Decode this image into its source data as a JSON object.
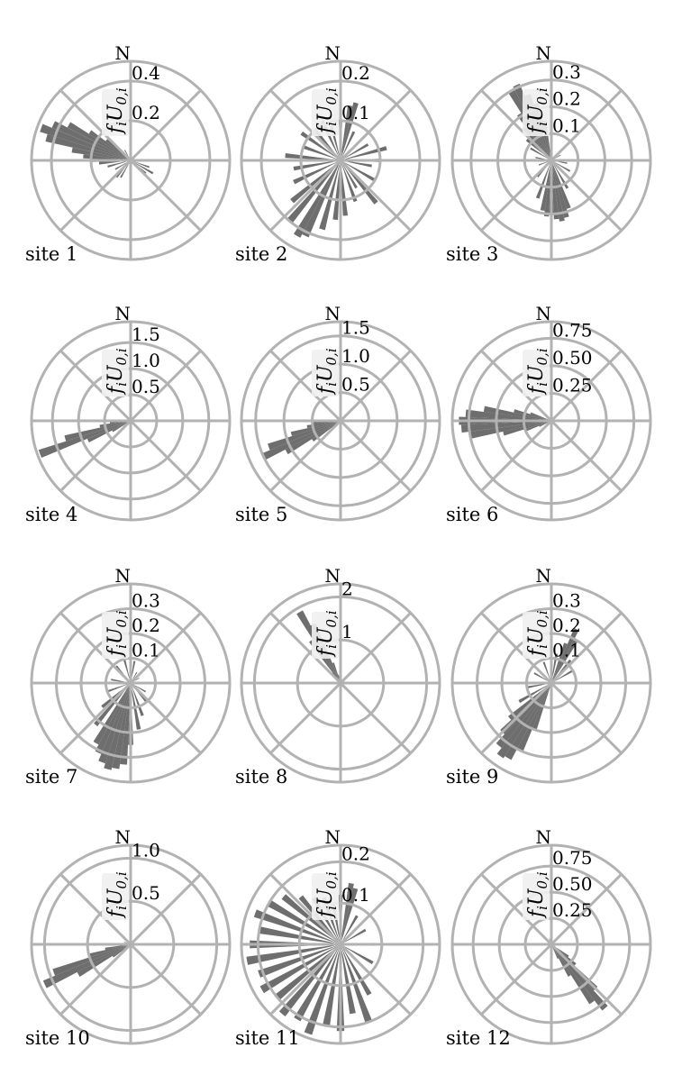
{
  "colors": {
    "bars": "#6e6e6e",
    "grid": "#b2b2b2",
    "label_box": "#f0f0f0"
  },
  "radial_label": {
    "f": "f",
    "i": "i",
    "U": "U",
    "sub": "0,",
    "i2": "i"
  },
  "chart_data": [
    {
      "type": "polar-bar",
      "site_label": "site 1",
      "north_label": "N",
      "rmax": 0.5,
      "ticks": [
        "0.2",
        "0.4"
      ],
      "tick_values": [
        0.2,
        0.4
      ],
      "grid": true,
      "bins": 72,
      "directions": [
        {
          "deg": 270,
          "r": 0.2
        },
        {
          "deg": 275,
          "r": 0.24
        },
        {
          "deg": 280,
          "r": 0.3
        },
        {
          "deg": 285,
          "r": 0.44
        },
        {
          "deg": 290,
          "r": 0.48
        },
        {
          "deg": 295,
          "r": 0.43
        },
        {
          "deg": 300,
          "r": 0.36
        },
        {
          "deg": 305,
          "r": 0.25
        },
        {
          "deg": 310,
          "r": 0.16
        },
        {
          "deg": 315,
          "r": 0.1
        },
        {
          "deg": 330,
          "r": 0.06
        },
        {
          "deg": 0,
          "r": 0.05
        },
        {
          "deg": 45,
          "r": 0.05
        },
        {
          "deg": 90,
          "r": 0.05
        },
        {
          "deg": 110,
          "r": 0.1
        },
        {
          "deg": 120,
          "r": 0.13
        },
        {
          "deg": 130,
          "r": 0.1
        },
        {
          "deg": 180,
          "r": 0.07
        },
        {
          "deg": 210,
          "r": 0.1
        },
        {
          "deg": 220,
          "r": 0.11
        },
        {
          "deg": 240,
          "r": 0.09
        },
        {
          "deg": 255,
          "r": 0.12
        },
        {
          "deg": 265,
          "r": 0.16
        }
      ]
    },
    {
      "type": "polar-bar",
      "site_label": "site 2",
      "north_label": "N",
      "rmax": 0.25,
      "ticks": [
        "0.1",
        "0.2"
      ],
      "tick_values": [
        0.1,
        0.2
      ],
      "grid": true,
      "bins": 72,
      "directions": [
        {
          "deg": 0,
          "r": 0.1
        },
        {
          "deg": 10,
          "r": 0.14
        },
        {
          "deg": 15,
          "r": 0.15
        },
        {
          "deg": 25,
          "r": 0.08
        },
        {
          "deg": 45,
          "r": 0.07
        },
        {
          "deg": 60,
          "r": 0.08
        },
        {
          "deg": 75,
          "r": 0.12
        },
        {
          "deg": 90,
          "r": 0.1
        },
        {
          "deg": 100,
          "r": 0.08
        },
        {
          "deg": 120,
          "r": 0.1
        },
        {
          "deg": 140,
          "r": 0.14
        },
        {
          "deg": 150,
          "r": 0.08
        },
        {
          "deg": 160,
          "r": 0.11
        },
        {
          "deg": 175,
          "r": 0.14
        },
        {
          "deg": 185,
          "r": 0.15
        },
        {
          "deg": 195,
          "r": 0.18
        },
        {
          "deg": 205,
          "r": 0.21
        },
        {
          "deg": 210,
          "r": 0.22
        },
        {
          "deg": 220,
          "r": 0.2
        },
        {
          "deg": 230,
          "r": 0.16
        },
        {
          "deg": 245,
          "r": 0.13
        },
        {
          "deg": 260,
          "r": 0.12
        },
        {
          "deg": 275,
          "r": 0.14
        },
        {
          "deg": 290,
          "r": 0.1
        },
        {
          "deg": 305,
          "r": 0.12
        },
        {
          "deg": 320,
          "r": 0.1
        },
        {
          "deg": 335,
          "r": 0.11
        },
        {
          "deg": 345,
          "r": 0.09
        }
      ]
    },
    {
      "type": "polar-bar",
      "site_label": "site 3",
      "north_label": "N",
      "rmax": 0.37,
      "ticks": [
        "0.1",
        "0.2",
        "0.3"
      ],
      "tick_values": [
        0.1,
        0.2,
        0.3
      ],
      "grid": true,
      "bins": 72,
      "directions": [
        {
          "deg": 0,
          "r": 0.03
        },
        {
          "deg": 60,
          "r": 0.04
        },
        {
          "deg": 100,
          "r": 0.06
        },
        {
          "deg": 120,
          "r": 0.08
        },
        {
          "deg": 150,
          "r": 0.12
        },
        {
          "deg": 160,
          "r": 0.19
        },
        {
          "deg": 165,
          "r": 0.22
        },
        {
          "deg": 170,
          "r": 0.23
        },
        {
          "deg": 175,
          "r": 0.22
        },
        {
          "deg": 180,
          "r": 0.2
        },
        {
          "deg": 185,
          "r": 0.21
        },
        {
          "deg": 190,
          "r": 0.19
        },
        {
          "deg": 200,
          "r": 0.15
        },
        {
          "deg": 220,
          "r": 0.08
        },
        {
          "deg": 250,
          "r": 0.05
        },
        {
          "deg": 280,
          "r": 0.06
        },
        {
          "deg": 300,
          "r": 0.09
        },
        {
          "deg": 310,
          "r": 0.12
        },
        {
          "deg": 320,
          "r": 0.16
        },
        {
          "deg": 325,
          "r": 0.21
        },
        {
          "deg": 330,
          "r": 0.3
        },
        {
          "deg": 335,
          "r": 0.31
        },
        {
          "deg": 340,
          "r": 0.26
        },
        {
          "deg": 345,
          "r": 0.22
        },
        {
          "deg": 350,
          "r": 0.15
        }
      ]
    },
    {
      "type": "polar-bar",
      "site_label": "site 4",
      "north_label": "N",
      "rmax": 1.9,
      "ticks": [
        "0.5",
        "1.0",
        "1.5"
      ],
      "tick_values": [
        0.5,
        1.0,
        1.5
      ],
      "grid": true,
      "bins": 72,
      "directions": [
        {
          "deg": 240,
          "r": 0.4
        },
        {
          "deg": 245,
          "r": 0.9
        },
        {
          "deg": 250,
          "r": 1.85
        },
        {
          "deg": 255,
          "r": 1.3
        },
        {
          "deg": 260,
          "r": 0.6
        },
        {
          "deg": 265,
          "r": 0.4
        },
        {
          "deg": 270,
          "r": 0.2
        },
        {
          "deg": 230,
          "r": 0.2
        },
        {
          "deg": 280,
          "r": 0.1
        }
      ]
    },
    {
      "type": "polar-bar",
      "site_label": "site 5",
      "north_label": "N",
      "rmax": 1.75,
      "ticks": [
        "0.5",
        "1.0",
        "1.5"
      ],
      "tick_values": [
        0.5,
        1.0,
        1.5
      ],
      "grid": true,
      "bins": 72,
      "directions": [
        {
          "deg": 235,
          "r": 0.6
        },
        {
          "deg": 240,
          "r": 1.1
        },
        {
          "deg": 245,
          "r": 1.5
        },
        {
          "deg": 250,
          "r": 1.35
        },
        {
          "deg": 255,
          "r": 0.9
        },
        {
          "deg": 260,
          "r": 0.6
        },
        {
          "deg": 265,
          "r": 0.5
        },
        {
          "deg": 270,
          "r": 0.3
        },
        {
          "deg": 225,
          "r": 0.2
        }
      ]
    },
    {
      "type": "polar-bar",
      "site_label": "site 6",
      "north_label": "N",
      "rmax": 0.9,
      "ticks": [
        "0.25",
        "0.50",
        "0.75"
      ],
      "tick_values": [
        0.25,
        0.5,
        0.75
      ],
      "grid": true,
      "bins": 72,
      "directions": [
        {
          "deg": 255,
          "r": 0.45
        },
        {
          "deg": 260,
          "r": 0.75
        },
        {
          "deg": 265,
          "r": 0.82
        },
        {
          "deg": 270,
          "r": 0.84
        },
        {
          "deg": 275,
          "r": 0.78
        },
        {
          "deg": 280,
          "r": 0.62
        },
        {
          "deg": 285,
          "r": 0.35
        },
        {
          "deg": 290,
          "r": 0.2
        },
        {
          "deg": 250,
          "r": 0.25
        },
        {
          "deg": 245,
          "r": 0.12
        },
        {
          "deg": 90,
          "r": 0.05
        }
      ]
    },
    {
      "type": "polar-bar",
      "site_label": "site 7",
      "north_label": "N",
      "rmax": 0.4,
      "ticks": [
        "0.1",
        "0.2",
        "0.3"
      ],
      "tick_values": [
        0.1,
        0.2,
        0.3
      ],
      "grid": true,
      "bins": 72,
      "directions": [
        {
          "deg": 0,
          "r": 0.14
        },
        {
          "deg": 10,
          "r": 0.09
        },
        {
          "deg": 30,
          "r": 0.05
        },
        {
          "deg": 60,
          "r": 0.04
        },
        {
          "deg": 90,
          "r": 0.05
        },
        {
          "deg": 120,
          "r": 0.07
        },
        {
          "deg": 140,
          "r": 0.1
        },
        {
          "deg": 160,
          "r": 0.14
        },
        {
          "deg": 170,
          "r": 0.19
        },
        {
          "deg": 180,
          "r": 0.25
        },
        {
          "deg": 185,
          "r": 0.33
        },
        {
          "deg": 190,
          "r": 0.35
        },
        {
          "deg": 195,
          "r": 0.36
        },
        {
          "deg": 200,
          "r": 0.34
        },
        {
          "deg": 205,
          "r": 0.31
        },
        {
          "deg": 210,
          "r": 0.28
        },
        {
          "deg": 220,
          "r": 0.22
        },
        {
          "deg": 230,
          "r": 0.15
        },
        {
          "deg": 250,
          "r": 0.1
        },
        {
          "deg": 280,
          "r": 0.08
        },
        {
          "deg": 320,
          "r": 0.09
        },
        {
          "deg": 345,
          "r": 0.13
        }
      ]
    },
    {
      "type": "polar-bar",
      "site_label": "site 8",
      "north_label": "N",
      "rmax": 2.3,
      "ticks": [
        "1",
        "2"
      ],
      "tick_values": [
        1,
        2
      ],
      "grid": true,
      "bins": 72,
      "directions": [
        {
          "deg": 325,
          "r": 1.2
        },
        {
          "deg": 330,
          "r": 1.9
        },
        {
          "deg": 335,
          "r": 1.5
        },
        {
          "deg": 340,
          "r": 0.5
        },
        {
          "deg": 320,
          "r": 0.3
        },
        {
          "deg": 345,
          "r": 0.2
        }
      ]
    },
    {
      "type": "polar-bar",
      "site_label": "site 9",
      "north_label": "N",
      "rmax": 0.4,
      "ticks": [
        "0.1",
        "0.2",
        "0.3"
      ],
      "tick_values": [
        0.1,
        0.2,
        0.3
      ],
      "grid": true,
      "bins": 72,
      "directions": [
        {
          "deg": 10,
          "r": 0.12
        },
        {
          "deg": 20,
          "r": 0.17
        },
        {
          "deg": 25,
          "r": 0.24
        },
        {
          "deg": 30,
          "r": 0.2
        },
        {
          "deg": 40,
          "r": 0.12
        },
        {
          "deg": 60,
          "r": 0.1
        },
        {
          "deg": 90,
          "r": 0.06
        },
        {
          "deg": 130,
          "r": 0.05
        },
        {
          "deg": 180,
          "r": 0.07
        },
        {
          "deg": 200,
          "r": 0.2
        },
        {
          "deg": 205,
          "r": 0.3
        },
        {
          "deg": 210,
          "r": 0.35
        },
        {
          "deg": 215,
          "r": 0.36
        },
        {
          "deg": 220,
          "r": 0.33
        },
        {
          "deg": 225,
          "r": 0.28
        },
        {
          "deg": 230,
          "r": 0.22
        },
        {
          "deg": 240,
          "r": 0.15
        },
        {
          "deg": 260,
          "r": 0.1
        },
        {
          "deg": 300,
          "r": 0.08
        },
        {
          "deg": 340,
          "r": 0.09
        },
        {
          "deg": 0,
          "r": 0.1
        }
      ]
    },
    {
      "type": "polar-bar",
      "site_label": "site 10",
      "north_label": "N",
      "rmax": 1.15,
      "ticks": [
        "0.5",
        "1.0"
      ],
      "tick_values": [
        0.5,
        1.0
      ],
      "grid": true,
      "bins": 72,
      "directions": [
        {
          "deg": 235,
          "r": 0.25
        },
        {
          "deg": 240,
          "r": 0.7
        },
        {
          "deg": 245,
          "r": 1.1
        },
        {
          "deg": 250,
          "r": 0.95
        },
        {
          "deg": 255,
          "r": 0.5
        },
        {
          "deg": 260,
          "r": 0.3
        },
        {
          "deg": 270,
          "r": 0.15
        },
        {
          "deg": 290,
          "r": 0.08
        },
        {
          "deg": 90,
          "r": 0.04
        }
      ]
    },
    {
      "type": "polar-bar",
      "site_label": "site 11",
      "north_label": "N",
      "rmax": 0.24,
      "ticks": [
        "0.1",
        "0.2"
      ],
      "tick_values": [
        0.1,
        0.2
      ],
      "grid": true,
      "bins": 72,
      "directions": [
        {
          "deg": 0,
          "r": 0.12
        },
        {
          "deg": 10,
          "r": 0.15
        },
        {
          "deg": 15,
          "r": 0.14
        },
        {
          "deg": 30,
          "r": 0.08
        },
        {
          "deg": 60,
          "r": 0.07
        },
        {
          "deg": 90,
          "r": 0.08
        },
        {
          "deg": 120,
          "r": 0.09
        },
        {
          "deg": 150,
          "r": 0.14
        },
        {
          "deg": 160,
          "r": 0.2
        },
        {
          "deg": 170,
          "r": 0.17
        },
        {
          "deg": 180,
          "r": 0.21
        },
        {
          "deg": 190,
          "r": 0.2
        },
        {
          "deg": 200,
          "r": 0.23
        },
        {
          "deg": 210,
          "r": 0.21
        },
        {
          "deg": 220,
          "r": 0.22
        },
        {
          "deg": 230,
          "r": 0.2
        },
        {
          "deg": 240,
          "r": 0.22
        },
        {
          "deg": 250,
          "r": 0.21
        },
        {
          "deg": 260,
          "r": 0.23
        },
        {
          "deg": 270,
          "r": 0.22
        },
        {
          "deg": 280,
          "r": 0.2
        },
        {
          "deg": 290,
          "r": 0.22
        },
        {
          "deg": 300,
          "r": 0.2
        },
        {
          "deg": 310,
          "r": 0.18
        },
        {
          "deg": 320,
          "r": 0.15
        },
        {
          "deg": 330,
          "r": 0.13
        },
        {
          "deg": 340,
          "r": 0.12
        },
        {
          "deg": 350,
          "r": 0.1
        }
      ]
    },
    {
      "type": "polar-bar",
      "site_label": "site 12",
      "north_label": "N",
      "rmax": 0.95,
      "ticks": [
        "0.25",
        "0.50",
        "0.75"
      ],
      "tick_values": [
        0.25,
        0.5,
        0.75
      ],
      "grid": true,
      "bins": 72,
      "directions": [
        {
          "deg": 130,
          "r": 0.3
        },
        {
          "deg": 135,
          "r": 0.6
        },
        {
          "deg": 140,
          "r": 0.8
        },
        {
          "deg": 145,
          "r": 0.68
        },
        {
          "deg": 150,
          "r": 0.35
        },
        {
          "deg": 125,
          "r": 0.2
        },
        {
          "deg": 155,
          "r": 0.15
        },
        {
          "deg": 315,
          "r": 0.08
        },
        {
          "deg": 340,
          "r": 0.06
        }
      ]
    }
  ]
}
